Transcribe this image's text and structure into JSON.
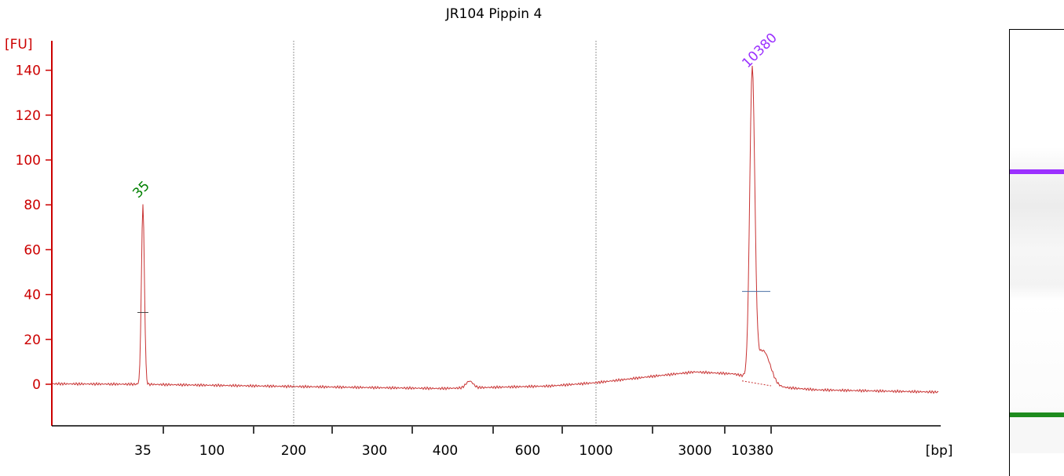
{
  "chart_data": {
    "type": "line",
    "title": "JR104 Pippin 4",
    "ylabel": "[FU]",
    "xlabel": "[bp]",
    "y_ticks": [
      0,
      20,
      40,
      60,
      80,
      100,
      120,
      140
    ],
    "ylim": [
      -18,
      152
    ],
    "x_tick_labels": [
      "35",
      "100",
      "200",
      "300",
      "400",
      "600",
      "1000",
      "3000",
      "10380"
    ],
    "x_axis_scale": "electropherogram (non-linear migration)",
    "grid": "dotted vertical lines at 200 and 1000 bp",
    "peaks": [
      {
        "size_bp": 35,
        "label": "35",
        "height_fu": 80,
        "color": "#008000"
      },
      {
        "size_bp": 10380,
        "label": "10380",
        "height_fu": 138,
        "color": "#9b30ff"
      }
    ],
    "series": [
      {
        "color": "#c83232",
        "description_points": [
          {
            "bp": "<35",
            "fu": 0
          },
          {
            "bp": 35,
            "fu": 80
          },
          {
            "bp": 200,
            "fu": -1
          },
          {
            "bp": "~450",
            "fu": 2
          },
          {
            "bp": 1000,
            "fu": 1
          },
          {
            "bp": "~3000-5000",
            "fu": 5.5
          },
          {
            "bp": 10380,
            "fu": 138
          },
          {
            "bp": ">10380",
            "fu": -3.5
          }
        ]
      }
    ],
    "colors": {
      "axis": "#cc0000",
      "trace": "#c83232",
      "lower_marker": "#008000",
      "upper_marker": "#9b30ff"
    }
  },
  "gel": {
    "bands": [
      {
        "name": "upper-marker",
        "color": "#9b30ff"
      },
      {
        "name": "lower-marker",
        "color": "#1e8c1e"
      }
    ]
  }
}
